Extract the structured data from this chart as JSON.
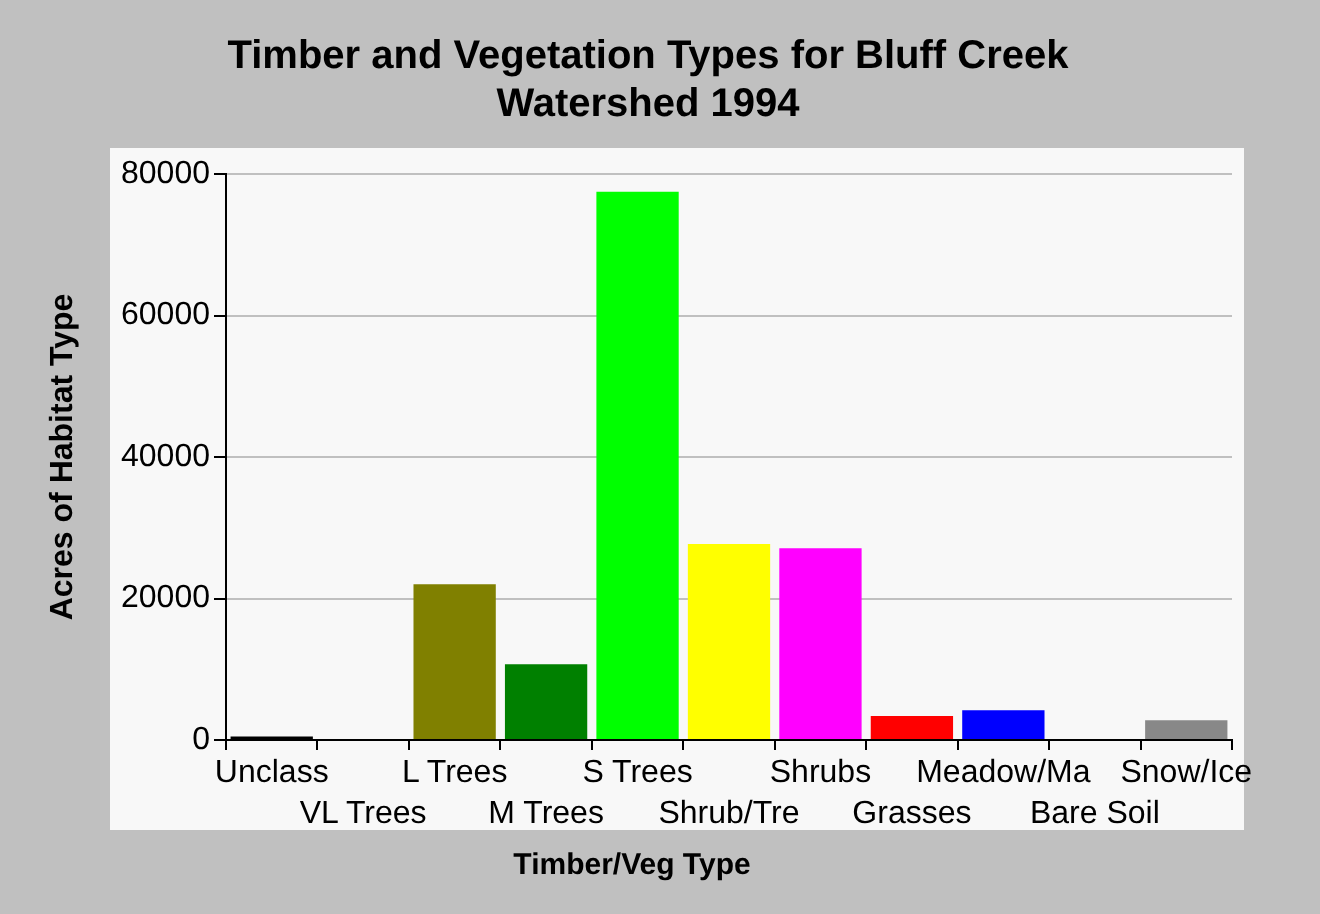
{
  "chart_data": {
    "type": "bar",
    "title": "Timber and Vegetation Types for Bluff Creek Watershed 1994",
    "xlabel": "Timber/Veg Type",
    "ylabel": "Acres of Habitat Type",
    "categories": [
      "Unclass",
      "VL Trees",
      "L Trees",
      "M Trees",
      "S Trees",
      "Shrub/Tre",
      "Shrubs",
      "Grasses",
      "Meadow/Ma",
      "Bare Soil",
      "Snow/Ice"
    ],
    "values": [
      500,
      0,
      22000,
      10700,
      77500,
      27700,
      27100,
      3400,
      4200,
      0,
      2800
    ],
    "colors": [
      "#000000",
      "#000080",
      "#808000",
      "#008000",
      "#00ff00",
      "#ffff00",
      "#ff00ff",
      "#ff0000",
      "#0000ff",
      "#804000",
      "#888888"
    ],
    "ylim": [
      0,
      80000
    ],
    "yticks": [
      0,
      20000,
      40000,
      60000,
      80000
    ],
    "grid": "y"
  }
}
